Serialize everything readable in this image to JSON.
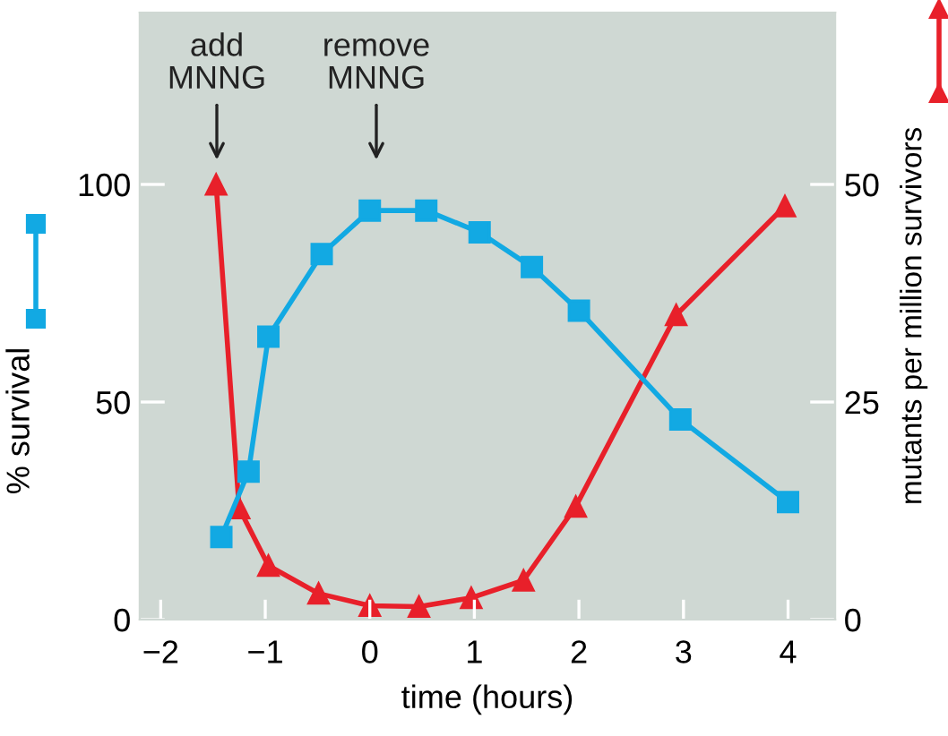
{
  "chart_data": {
    "type": "line",
    "xlabel": "time (hours)",
    "ylabel": "% survival",
    "y2label": "mutants per million survivors",
    "xlim": [
      -2.2,
      4.45
    ],
    "xticks": [
      {
        "value": -2,
        "label": "−2"
      },
      {
        "value": -1,
        "label": "−1"
      },
      0,
      1,
      2,
      3,
      4
    ],
    "ylim": [
      0,
      139.5
    ],
    "yticks": [
      0,
      50,
      100
    ],
    "y2lim": [
      0,
      69.75
    ],
    "y2ticks": [
      0,
      25,
      50
    ],
    "grid": false,
    "legend": false,
    "series": [
      {
        "color": "#12a9e3",
        "marker": "square",
        "x": [
          -1.42,
          -1.16,
          -0.97,
          -0.46,
          0.0,
          0.54,
          1.05,
          1.55,
          2.0,
          2.97,
          4.0
        ],
        "values": [
          19,
          34,
          65,
          84,
          94,
          94,
          89,
          81,
          71,
          46,
          27
        ]
      },
      {
        "color": "#e8202a",
        "marker": "triangle",
        "axis": "y2",
        "x": [
          -1.47,
          -1.25,
          -0.97,
          -0.49,
          0.0,
          0.47,
          0.97,
          1.47,
          1.97,
          2.93,
          3.97
        ],
        "values": [
          50,
          12.8,
          6.2,
          3,
          1.6,
          1.5,
          2.5,
          4.5,
          13,
          35,
          47.5
        ]
      }
    ],
    "annotations": [
      "add\nMNNG",
      "remove\nMNNG"
    ]
  }
}
